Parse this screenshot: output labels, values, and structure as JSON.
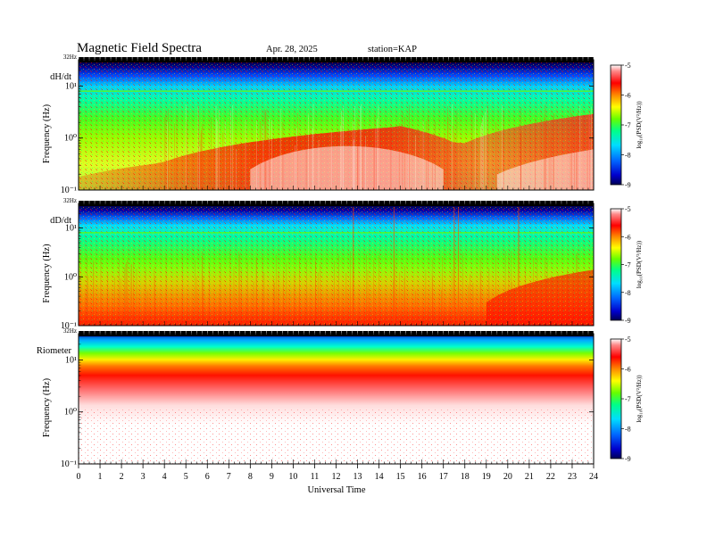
{
  "header": {
    "title": "Magnetic Field Spectra",
    "date": "Apr. 28, 2025",
    "station": "station=KAP"
  },
  "chart_data": [
    {
      "type": "heatmap",
      "panel_label": "dH/dt",
      "ylabel": "Frequency (Hz)",
      "top_label": "32Hz",
      "y_tick_labels": [
        "10¹",
        "10⁰",
        "10⁻¹"
      ],
      "y_tick_values": [
        10,
        1,
        0.1
      ],
      "ylim": [
        0.1,
        32
      ],
      "yscale": "log",
      "xlim": [
        0,
        24
      ],
      "colorbar_label": "log₁₀(PSD(V²/Hz))",
      "colorbar_ticks": [
        "-5",
        "-6",
        "-7",
        "-8",
        "-9"
      ],
      "colorbar_range": [
        -9,
        -5
      ]
    },
    {
      "type": "heatmap",
      "panel_label": "dD/dt",
      "ylabel": "Frequency (Hz)",
      "top_label": "32Hz",
      "y_tick_labels": [
        "10¹",
        "10⁰",
        "10⁻¹"
      ],
      "y_tick_values": [
        10,
        1,
        0.1
      ],
      "ylim": [
        0.1,
        32
      ],
      "yscale": "log",
      "xlim": [
        0,
        24
      ],
      "colorbar_label": "log₁₀(PSD(V²/Hz))",
      "colorbar_ticks": [
        "-5",
        "-6",
        "-7",
        "-8",
        "-9"
      ],
      "colorbar_range": [
        -9,
        -5
      ]
    },
    {
      "type": "heatmap",
      "panel_label": "Riometer",
      "ylabel": "Frequency (Hz)",
      "top_label": "32Hz",
      "y_tick_labels": [
        "10¹",
        "10⁰",
        "10⁻¹"
      ],
      "y_tick_values": [
        10,
        1,
        0.1
      ],
      "ylim": [
        0.1,
        32
      ],
      "yscale": "log",
      "xlim": [
        0,
        24
      ],
      "xlabel": "Universal Time",
      "x_tick_labels": [
        "0",
        "1",
        "2",
        "3",
        "4",
        "5",
        "6",
        "7",
        "8",
        "9",
        "10",
        "11",
        "12",
        "13",
        "14",
        "15",
        "16",
        "17",
        "18",
        "19",
        "20",
        "21",
        "22",
        "23",
        "24"
      ],
      "colorbar_label": "log₁₀(PSD(V²/Hz))",
      "colorbar_ticks": [
        "-5",
        "-6",
        "-7",
        "-8",
        "-9"
      ],
      "colorbar_range": [
        -9,
        -5
      ]
    }
  ],
  "colors": {
    "colormap": [
      "#000066",
      "#0000ff",
      "#00aaff",
      "#00ffff",
      "#00ff66",
      "#55ff00",
      "#ffff00",
      "#ff8800",
      "#ff0000",
      "#ff6666",
      "#ffffff"
    ]
  }
}
